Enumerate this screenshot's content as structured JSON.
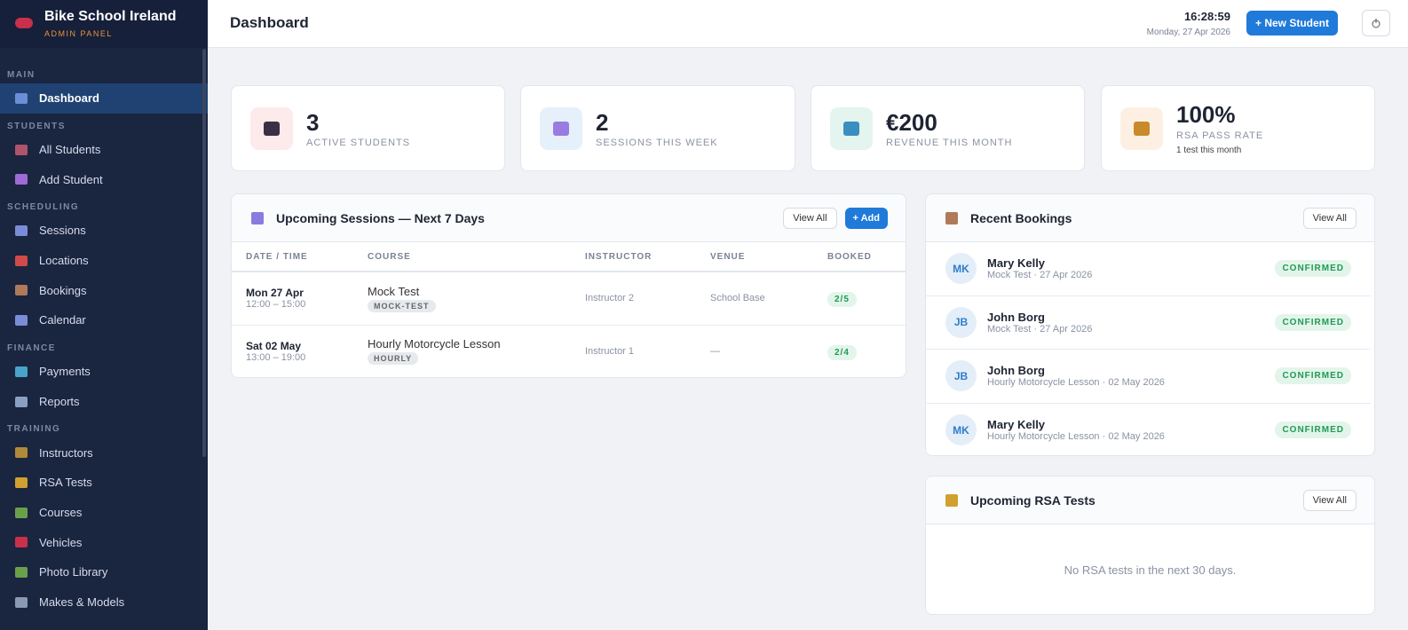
{
  "sidebar": {
    "brand": "Bike School Ireland",
    "subtitle": "ADMIN PANEL",
    "sections": [
      {
        "label": "MAIN",
        "items": [
          "Dashboard"
        ]
      },
      {
        "label": "STUDENTS",
        "items": [
          "All Students",
          "Add Student"
        ]
      },
      {
        "label": "SCHEDULING",
        "items": [
          "Sessions",
          "Locations",
          "Bookings",
          "Calendar"
        ]
      },
      {
        "label": "FINANCE",
        "items": [
          "Payments",
          "Reports"
        ]
      },
      {
        "label": "TRAINING",
        "items": [
          "Instructors",
          "RSA Tests",
          "Courses",
          "Vehicles",
          "Photo Library",
          "Makes & Models"
        ]
      }
    ]
  },
  "header": {
    "title": "Dashboard",
    "time": "16:28:59",
    "date": "Monday, 27 Apr 2026",
    "button": "+ New Student"
  },
  "stats": [
    {
      "value": "3",
      "label": "ACTIVE STUDENTS"
    },
    {
      "value": "2",
      "label": "SESSIONS THIS WEEK"
    },
    {
      "value": "€200",
      "label": "REVENUE THIS MONTH"
    },
    {
      "value": "100%",
      "label": "RSA PASS RATE",
      "note": "1 test this month"
    }
  ],
  "sessions": {
    "title": "Upcoming Sessions — Next 7 Days",
    "view_all": "View All",
    "add": "+ Add",
    "columns": [
      "DATE / TIME",
      "COURSE",
      "INSTRUCTOR",
      "VENUE",
      "BOOKED"
    ],
    "rows": [
      {
        "date": "Mon 27 Apr",
        "time": "12:00 – 15:00",
        "course": "Mock Test",
        "tag": "MOCK-TEST",
        "instructor": "Instructor 2",
        "venue": "School Base",
        "booked": "2/5"
      },
      {
        "date": "Sat 02 May",
        "time": "13:00 – 19:00",
        "course": "Hourly Motorcycle Lesson",
        "tag": "HOURLY",
        "instructor": "Instructor 1",
        "venue": "—",
        "booked": "2/4"
      }
    ]
  },
  "bookings": {
    "title": "Recent Bookings",
    "view_all": "View All",
    "items": [
      {
        "initials": "MK",
        "name": "Mary Kelly",
        "detail": "Mock Test · 27 Apr 2026",
        "status": "CONFIRMED"
      },
      {
        "initials": "JB",
        "name": "John Borg",
        "detail": "Mock Test · 27 Apr 2026",
        "status": "CONFIRMED"
      },
      {
        "initials": "JB",
        "name": "John Borg",
        "detail": "Hourly Motorcycle Lesson · 02 May 2026",
        "status": "CONFIRMED"
      },
      {
        "initials": "MK",
        "name": "Mary Kelly",
        "detail": "Hourly Motorcycle Lesson · 02 May 2026",
        "status": "CONFIRMED"
      }
    ]
  },
  "rsa": {
    "title": "Upcoming RSA Tests",
    "view_all": "View All",
    "empty": "No RSA tests in the next 30 days."
  }
}
